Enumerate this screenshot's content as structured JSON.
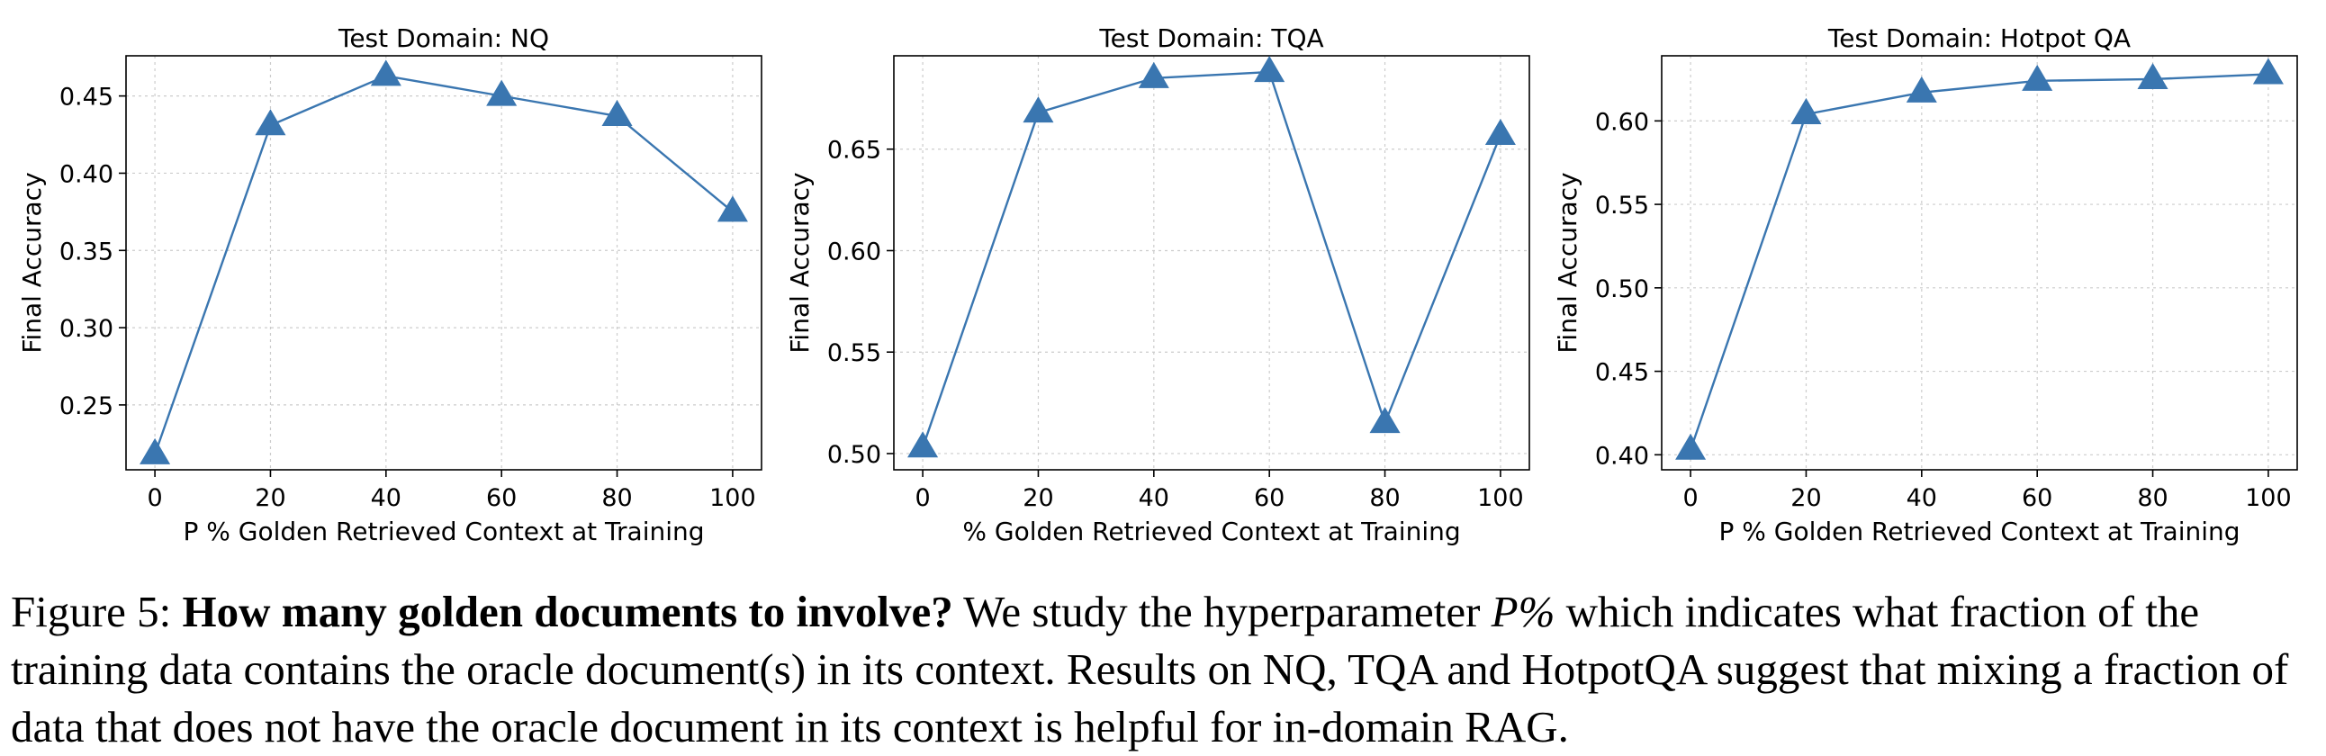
{
  "chart_data": [
    {
      "type": "line",
      "title": "Test Domain: NQ",
      "xlabel": "P % Golden Retrieved Context at Training",
      "ylabel": "Final Accuracy",
      "x": [
        0,
        20,
        40,
        60,
        80,
        100
      ],
      "x_ticks": [
        "0",
        "20",
        "40",
        "60",
        "80",
        "100"
      ],
      "xlim": [
        -5,
        105
      ],
      "y_ticks": [
        0.25,
        0.3,
        0.35,
        0.4,
        0.45
      ],
      "y_tick_labels": [
        "0.25",
        "0.30",
        "0.35",
        "0.40",
        "0.45"
      ],
      "ylim": [
        0.208,
        0.476
      ],
      "series": [
        {
          "values": [
            0.218,
            0.431,
            0.463,
            0.45,
            0.437,
            0.375
          ],
          "marker": "triangle",
          "color": "#3a76b0"
        }
      ],
      "grid": true
    },
    {
      "type": "line",
      "title": "Test Domain: TQA",
      "xlabel": "% Golden Retrieved Context at Training",
      "ylabel": "Final Accuracy",
      "x": [
        0,
        20,
        40,
        60,
        80,
        100
      ],
      "x_ticks": [
        "0",
        "20",
        "40",
        "60",
        "80",
        "100"
      ],
      "xlim": [
        -5,
        105
      ],
      "y_ticks": [
        0.5,
        0.55,
        0.6,
        0.65
      ],
      "y_tick_labels": [
        "0.50",
        "0.55",
        "0.60",
        "0.65"
      ],
      "ylim": [
        0.492,
        0.696
      ],
      "series": [
        {
          "values": [
            0.503,
            0.668,
            0.685,
            0.688,
            0.515,
            0.657
          ],
          "marker": "triangle",
          "color": "#3a76b0"
        }
      ],
      "grid": true
    },
    {
      "type": "line",
      "title": "Test Domain: Hotpot QA",
      "xlabel": "P % Golden Retrieved Context at Training",
      "ylabel": "Final Accuracy",
      "x": [
        0,
        20,
        40,
        60,
        80,
        100
      ],
      "x_ticks": [
        "0",
        "20",
        "40",
        "60",
        "80",
        "100"
      ],
      "xlim": [
        -5,
        105
      ],
      "y_ticks": [
        0.4,
        0.45,
        0.5,
        0.55,
        0.6
      ],
      "y_tick_labels": [
        "0.40",
        "0.45",
        "0.50",
        "0.55",
        "0.60"
      ],
      "ylim": [
        0.391,
        0.639
      ],
      "series": [
        {
          "values": [
            0.403,
            0.604,
            0.617,
            0.624,
            0.625,
            0.628
          ],
          "marker": "triangle",
          "color": "#3a76b0"
        }
      ],
      "grid": true
    }
  ],
  "caption": {
    "figure_label": "Figure 5:",
    "bold_title": "How many golden documents to involve?",
    "text_before_math": "We study the hyperparameter",
    "math": "P%",
    "text_after_math": "which indicates what fraction of the training data contains the oracle document(s) in its context. Results on NQ, TQA and HotpotQA suggest that mixing a fraction of data that does not have the oracle document in its context is helpful for in-domain RAG."
  },
  "colors": {
    "series": "#3a76b0",
    "grid": "#cccccc",
    "axis": "#000000"
  }
}
